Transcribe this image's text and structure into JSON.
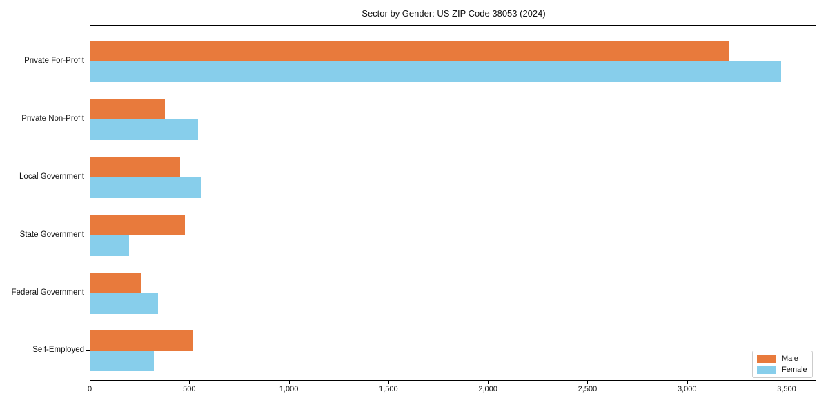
{
  "title": "Sector by Gender: US ZIP Code 38053 (2024)",
  "chart_data": {
    "type": "bar",
    "orientation": "horizontal",
    "title": "Sector by Gender: US ZIP Code 38053 (2024)",
    "categories": [
      "Private For-Profit",
      "Private Non-Profit",
      "Local Government",
      "State Government",
      "Federal Government",
      "Self-Employed"
    ],
    "series": [
      {
        "name": "Male",
        "color": "#e87a3c",
        "values": [
          3210,
          375,
          450,
          475,
          255,
          515
        ]
      },
      {
        "name": "Female",
        "color": "#87ceeb",
        "values": [
          3475,
          540,
          555,
          195,
          340,
          320
        ]
      }
    ],
    "xlabel": "",
    "ylabel": "",
    "xlim": [
      0,
      3649
    ],
    "xticks": [
      0,
      500,
      1000,
      1500,
      2000,
      2500,
      3000,
      3500
    ],
    "grid": false,
    "legend_position": "lower right"
  }
}
